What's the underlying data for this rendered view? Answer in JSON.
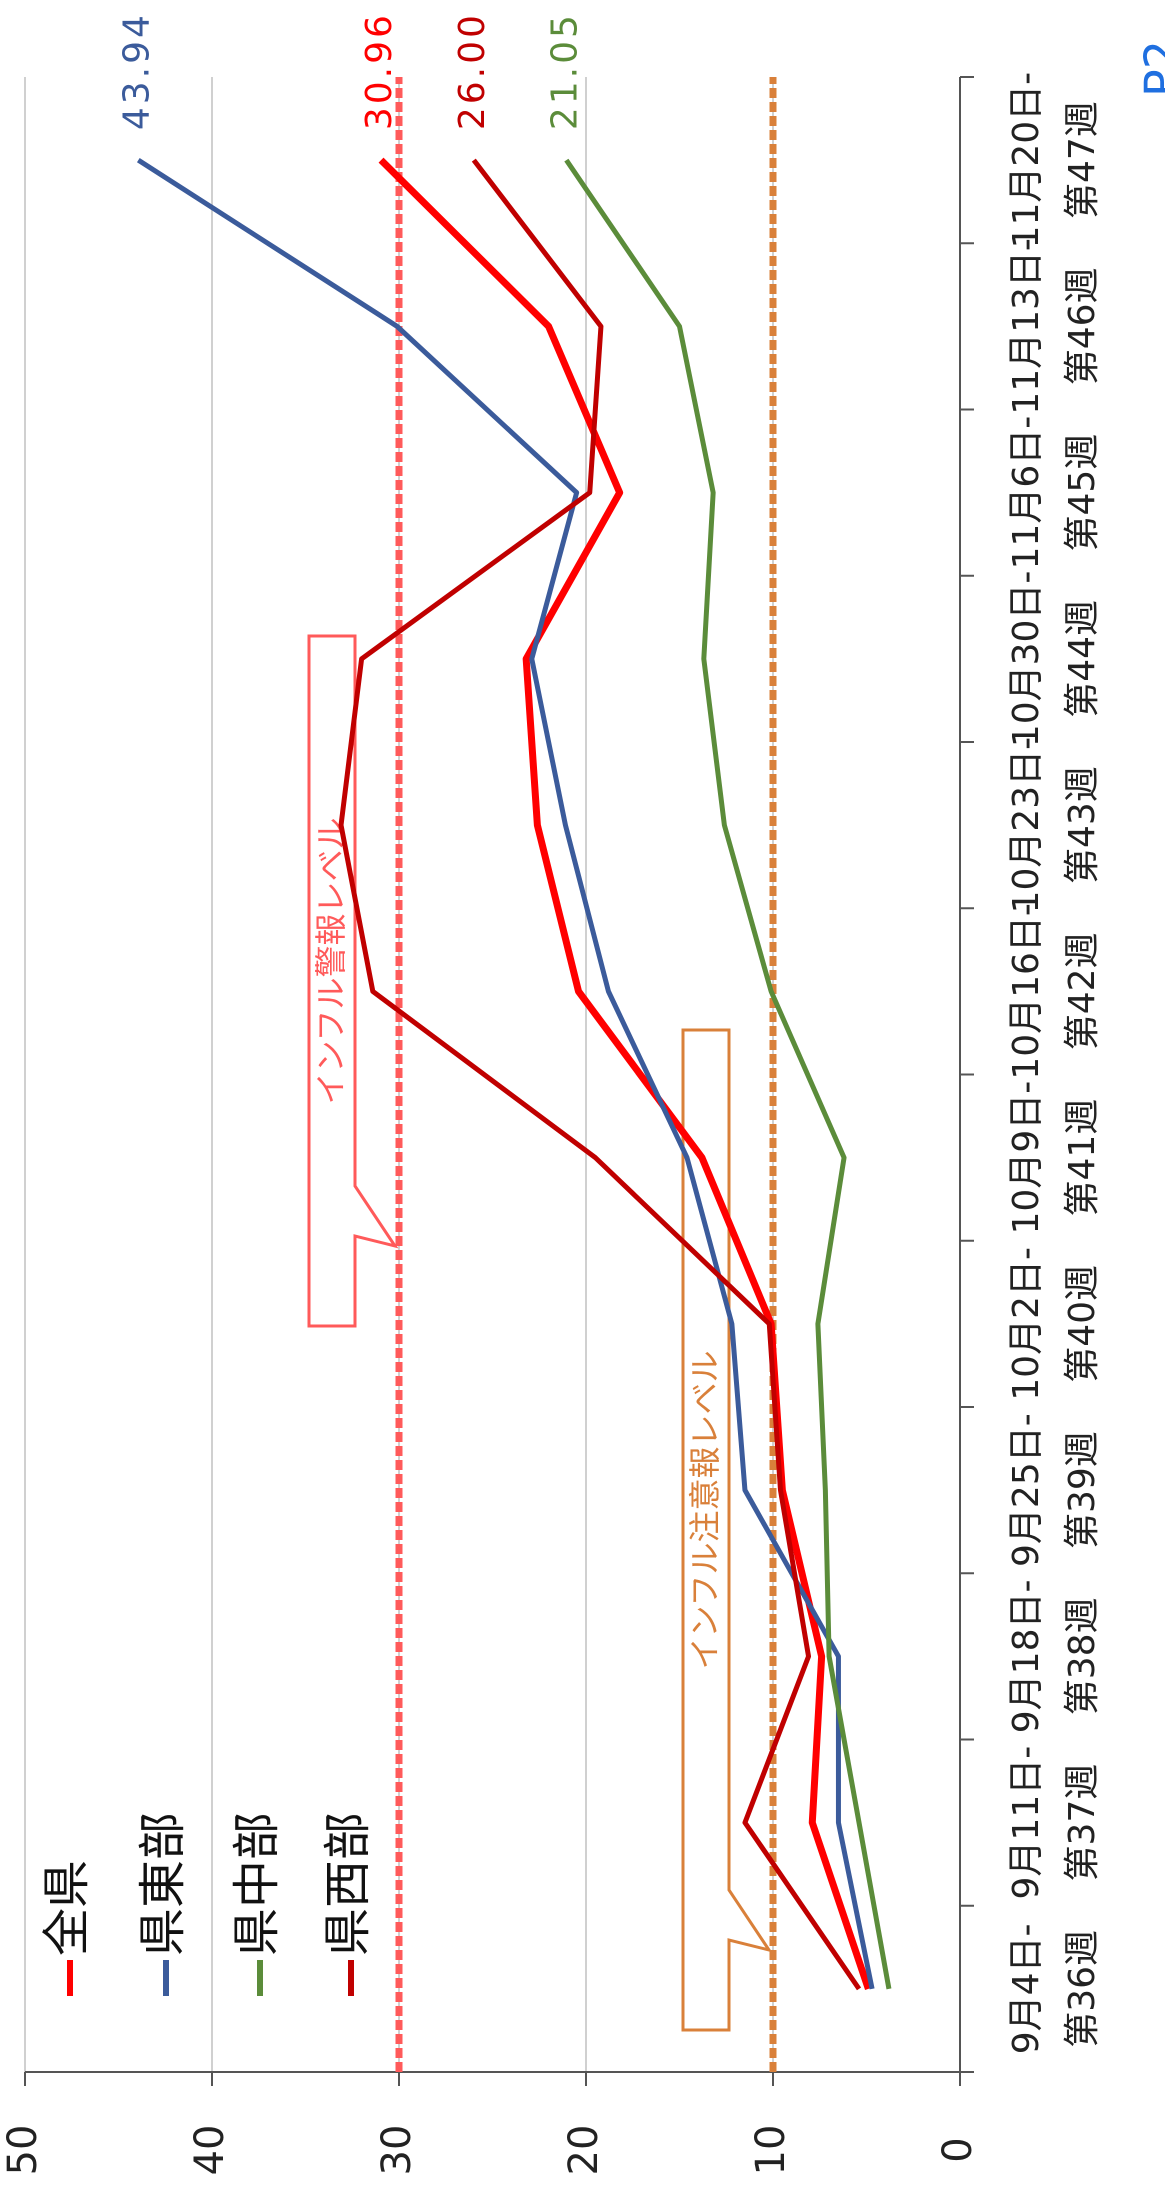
{
  "chart_data": {
    "type": "line",
    "page_label": "P2",
    "categories": [
      [
        "9月4日-",
        "第36週"
      ],
      [
        "9月11日-",
        "第37週"
      ],
      [
        "9月18日-",
        "第38週"
      ],
      [
        "9月25日-",
        "第39週"
      ],
      [
        "10月2日-",
        "第40週"
      ],
      [
        "10月9日-",
        "第41週"
      ],
      [
        "10月16日-",
        "第42週"
      ],
      [
        "10月23日-",
        "第43週"
      ],
      [
        "10月30日-",
        "第44週"
      ],
      [
        "11月6日-",
        "第45週"
      ],
      [
        "11月13日-",
        "第46週"
      ],
      [
        "11月20日-",
        "第47週"
      ]
    ],
    "series": [
      {
        "name": "全県",
        "color": "#ff0000",
        "values": [
          4.9,
          7.9,
          7.4,
          9.5,
          10.1,
          13.8,
          20.4,
          22.6,
          23.2,
          18.2,
          22.0,
          30.96
        ],
        "value_labels": [
          null,
          null,
          null,
          null,
          null,
          null,
          null,
          null,
          null,
          null,
          null,
          "30.96"
        ]
      },
      {
        "name": "県東部",
        "color": "#3b5b9b",
        "values": [
          4.7,
          6.5,
          6.5,
          11.5,
          12.2,
          14.6,
          18.8,
          21.1,
          22.9,
          20.5,
          30.1,
          43.94
        ],
        "value_labels": [
          null,
          null,
          null,
          null,
          null,
          null,
          null,
          null,
          null,
          null,
          null,
          "43.94"
        ]
      },
      {
        "name": "県中部",
        "color": "#5b8c3a",
        "values": [
          3.8,
          5.4,
          7.0,
          7.2,
          7.6,
          6.2,
          10.1,
          12.6,
          13.7,
          13.2,
          15.0,
          21.05
        ],
        "value_labels": [
          null,
          null,
          null,
          null,
          null,
          null,
          null,
          null,
          null,
          null,
          null,
          "21.05"
        ]
      },
      {
        "name": "県西部",
        "color": "#c00000",
        "values": [
          5.4,
          11.5,
          8.1,
          9.6,
          10.2,
          19.5,
          31.4,
          33.1,
          32.0,
          19.8,
          19.2,
          26
        ],
        "value_labels": [
          null,
          null,
          null,
          null,
          null,
          null,
          null,
          null,
          null,
          null,
          null,
          "26.00"
        ]
      }
    ],
    "reference_lines": [
      {
        "value": 30,
        "label": "インフル警報レベル",
        "color": "#ff5a5a"
      },
      {
        "value": 10,
        "label": "インフル注意報レベル",
        "color": "#d9803a"
      }
    ],
    "ylim": [
      0,
      50
    ],
    "yticks": [
      0,
      10,
      20,
      30,
      40,
      50
    ],
    "grid": true,
    "legend": "top-left"
  }
}
